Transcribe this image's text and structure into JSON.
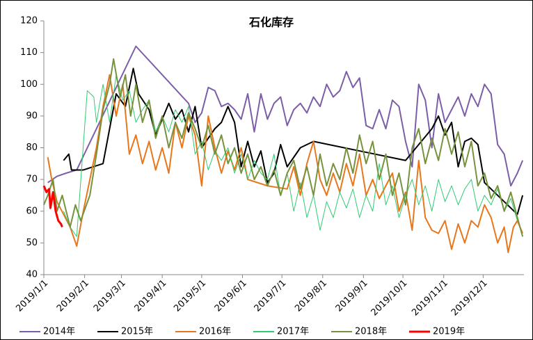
{
  "chart_data": {
    "type": "line",
    "title": "石化库存",
    "xlim": [
      0,
      365
    ],
    "xticks": [
      {
        "value": 0,
        "label": "2019/1/1"
      },
      {
        "value": 31,
        "label": "2019/2/1"
      },
      {
        "value": 59,
        "label": "2019/3/1"
      },
      {
        "value": 90,
        "label": "2019/4/1"
      },
      {
        "value": 120,
        "label": "2019/5/1"
      },
      {
        "value": 151,
        "label": "2019/6/1"
      },
      {
        "value": 181,
        "label": "2019/7/1"
      },
      {
        "value": 212,
        "label": "2019/8/1"
      },
      {
        "value": 243,
        "label": "2019/9/1"
      },
      {
        "value": 273,
        "label": "2019/10/1"
      },
      {
        "value": 304,
        "label": "2019/11/1"
      },
      {
        "value": 334,
        "label": "2019/12/1"
      }
    ],
    "ylim": [
      40,
      120
    ],
    "yticks": [
      40,
      50,
      60,
      70,
      80,
      90,
      100,
      110,
      120
    ],
    "legend": "bottom",
    "series": [
      {
        "name": "2014年",
        "color": "#7b5ea7",
        "width": 2,
        "x": [
          3,
          10,
          17,
          25,
          70,
          110,
          115,
          120,
          125,
          130,
          135,
          140,
          145,
          150,
          155,
          160,
          165,
          170,
          175,
          180,
          185,
          190,
          195,
          200,
          205,
          210,
          215,
          220,
          225,
          230,
          235,
          240,
          245,
          250,
          255,
          260,
          265,
          270,
          275,
          280,
          285,
          290,
          295,
          300,
          305,
          310,
          315,
          320,
          325,
          330,
          335,
          340,
          345,
          350,
          355,
          360,
          364
        ],
        "values": [
          69,
          71,
          72,
          73,
          112,
          94,
          88,
          91,
          99,
          98,
          93,
          94,
          92,
          89,
          97,
          85,
          97,
          89,
          94,
          96,
          87,
          92,
          94,
          91,
          96,
          93,
          100,
          96,
          98,
          104,
          99,
          102,
          87,
          86,
          92,
          86,
          95,
          93,
          82,
          74,
          100,
          95,
          80,
          97,
          88,
          92,
          96,
          90,
          97,
          93,
          100,
          97,
          81,
          78,
          68,
          72,
          76
        ]
      },
      {
        "name": "2015年",
        "color": "#000000",
        "width": 2,
        "x": [
          15,
          19,
          21,
          30,
          45,
          55,
          62,
          65,
          68,
          72,
          80,
          85,
          90,
          95,
          100,
          105,
          110,
          115,
          120,
          130,
          135,
          140,
          145,
          150,
          155,
          160,
          165,
          170,
          175,
          180,
          185,
          195,
          205,
          240,
          275,
          295,
          300,
          305,
          310,
          315,
          320,
          325,
          330,
          335,
          360,
          364
        ],
        "values": [
          76,
          78,
          73,
          73,
          75,
          97,
          93,
          99,
          105,
          97,
          92,
          84,
          89,
          94,
          89,
          92,
          85,
          93,
          80,
          86,
          88,
          93,
          88,
          74,
          82,
          74,
          79,
          69,
          72,
          81,
          74,
          80,
          82,
          79,
          76,
          86,
          90,
          84,
          88,
          74,
          82,
          83,
          81,
          69,
          59,
          65
        ]
      },
      {
        "name": "2016年",
        "color": "#e8771b",
        "width": 2,
        "x": [
          3,
          6,
          10,
          20,
          25,
          30,
          40,
          45,
          50,
          55,
          60,
          65,
          70,
          75,
          80,
          85,
          90,
          95,
          100,
          105,
          110,
          115,
          120,
          125,
          130,
          135,
          140,
          145,
          150,
          155,
          170,
          185,
          190,
          195,
          200,
          205,
          210,
          215,
          220,
          225,
          230,
          235,
          240,
          245,
          250,
          255,
          260,
          265,
          270,
          275,
          280,
          285,
          290,
          295,
          300,
          305,
          310,
          315,
          320,
          325,
          330,
          335,
          340,
          345,
          350,
          353,
          357,
          360,
          364
        ],
        "values": [
          77,
          70,
          63,
          55,
          49,
          60,
          80,
          93,
          103,
          90,
          100,
          78,
          84,
          75,
          82,
          73,
          80,
          72,
          88,
          80,
          90,
          84,
          68,
          90,
          80,
          72,
          79,
          73,
          80,
          70,
          68,
          67,
          74,
          65,
          75,
          82,
          70,
          65,
          72,
          66,
          75,
          68,
          78,
          65,
          70,
          64,
          68,
          72,
          60,
          66,
          54,
          76,
          58,
          54,
          53,
          57,
          48,
          56,
          50,
          57,
          55,
          62,
          58,
          50,
          55,
          47,
          55,
          57,
          53
        ]
      },
      {
        "name": "2017年",
        "color": "#2ecc71",
        "width": 1,
        "x": [
          15,
          20,
          25,
          33,
          38,
          40,
          45,
          50,
          55,
          60,
          65,
          70,
          75,
          80,
          85,
          90,
          95,
          100,
          105,
          110,
          115,
          120,
          125,
          130,
          135,
          140,
          145,
          150,
          155,
          160,
          165,
          170,
          175,
          180,
          185,
          190,
          195,
          200,
          205,
          210,
          215,
          220,
          225,
          230,
          235,
          240,
          245,
          250,
          255,
          260,
          265,
          270,
          275,
          280,
          285,
          290,
          295,
          300,
          305,
          310,
          315,
          320,
          325,
          330,
          335,
          340,
          345,
          350,
          355,
          360
        ],
        "values": [
          60,
          55,
          52,
          98,
          96,
          88,
          100,
          88,
          103,
          95,
          98,
          88,
          92,
          95,
          85,
          90,
          85,
          92,
          88,
          93,
          78,
          82,
          73,
          79,
          76,
          80,
          72,
          78,
          70,
          76,
          72,
          70,
          78,
          65,
          72,
          60,
          69,
          58,
          65,
          54,
          63,
          58,
          66,
          61,
          67,
          58,
          65,
          60,
          75,
          62,
          68,
          58,
          65,
          70,
          62,
          68,
          60,
          70,
          63,
          68,
          62,
          67,
          70,
          60,
          65,
          62,
          67,
          60,
          64,
          57
        ]
      },
      {
        "name": "2018年",
        "color": "#76923c",
        "width": 2,
        "x": [
          0,
          3,
          7,
          10,
          14,
          20,
          24,
          28,
          35,
          40,
          45,
          50,
          53,
          58,
          62,
          66,
          70,
          75,
          80,
          85,
          90,
          95,
          100,
          105,
          110,
          115,
          120,
          125,
          130,
          135,
          140,
          145,
          150,
          155,
          160,
          165,
          170,
          175,
          180,
          185,
          190,
          195,
          200,
          205,
          210,
          215,
          220,
          225,
          230,
          235,
          240,
          245,
          250,
          255,
          260,
          265,
          270,
          275,
          280,
          285,
          290,
          295,
          300,
          305,
          310,
          315,
          320,
          325,
          330,
          335,
          340,
          345,
          350,
          355,
          360,
          364
        ],
        "values": [
          62,
          65,
          70,
          60,
          65,
          55,
          62,
          57,
          65,
          78,
          92,
          100,
          108,
          96,
          103,
          90,
          100,
          88,
          95,
          83,
          90,
          80,
          88,
          83,
          91,
          86,
          80,
          87,
          78,
          84,
          75,
          80,
          72,
          78,
          70,
          74,
          68,
          73,
          65,
          72,
          76,
          67,
          74,
          65,
          78,
          68,
          75,
          70,
          80,
          72,
          84,
          75,
          82,
          70,
          78,
          65,
          72,
          62,
          80,
          86,
          75,
          83,
          76,
          86,
          78,
          85,
          74,
          82,
          68,
          72,
          64,
          68,
          60,
          66,
          58,
          52
        ]
      },
      {
        "name": "2019年",
        "color": "#ff0000",
        "width": 3,
        "x": [
          0,
          2,
          4,
          5,
          7,
          9,
          11,
          13,
          14
        ],
        "values": [
          68,
          66,
          67,
          61,
          66,
          60,
          57,
          56,
          55
        ]
      }
    ]
  }
}
